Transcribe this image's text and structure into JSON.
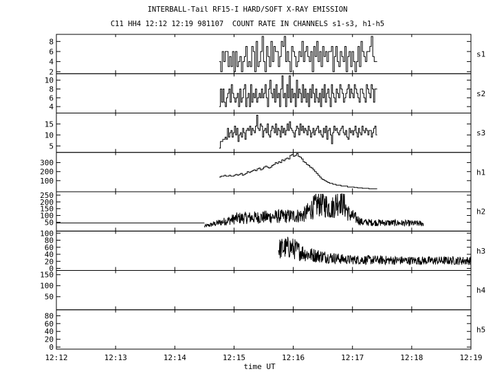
{
  "chart_data": {
    "type": "line",
    "title": "INTERBALL-Tail RF15-I HARD/SOFT X-RAY EMISSION",
    "subtitle": "C11 HH4 12:12 12:19 981107  COUNT RATE IN CHANNELS s1-s3, h1-h5",
    "xlabel": "time UT",
    "x_range": [
      "12:12",
      "12:19"
    ],
    "x_ticks": [
      "12:12",
      "12:13",
      "12:14",
      "12:15",
      "12:16",
      "12:17",
      "12:18",
      "12:19"
    ],
    "grid": false,
    "panels": [
      {
        "name": "s1",
        "style": "step",
        "ylim": [
          2,
          9
        ],
        "yticks": [
          2,
          4,
          6,
          8
        ],
        "x_start": "12:14:45",
        "x_end": "12:17:25",
        "values": [
          4,
          2,
          6,
          4,
          6,
          6,
          3,
          5,
          3,
          6,
          2,
          6,
          3,
          4,
          5,
          2,
          4,
          5,
          7,
          3,
          4,
          3,
          7,
          6,
          2,
          8,
          3,
          4,
          6,
          9,
          4,
          2,
          7,
          5,
          3,
          8,
          4,
          7,
          6,
          6,
          3,
          5,
          8,
          7,
          9,
          4,
          6,
          4,
          2,
          7,
          6,
          5,
          3,
          4,
          6,
          5,
          8,
          4,
          6,
          7,
          5,
          4,
          6,
          2,
          7,
          5,
          8,
          4,
          6,
          3,
          7,
          5,
          6,
          4,
          6,
          6,
          7,
          2,
          5,
          7,
          4,
          3,
          6,
          5,
          4,
          7,
          2,
          5,
          6,
          3,
          6,
          4,
          2,
          4,
          7,
          3,
          8,
          6,
          5,
          4,
          6,
          6,
          7,
          9,
          5,
          4,
          4
        ]
      },
      {
        "name": "s2",
        "style": "step",
        "ylim": [
          3,
          11
        ],
        "yticks": [
          4,
          6,
          8,
          10
        ],
        "x_start": "12:14:45",
        "x_end": "12:17:25",
        "values": [
          4,
          8,
          5,
          8,
          5,
          4,
          6,
          7,
          8,
          5,
          9,
          7,
          6,
          5,
          6,
          7,
          4,
          8,
          5,
          6,
          8,
          9,
          4,
          6,
          7,
          4,
          9,
          5,
          7,
          6,
          8,
          5,
          6,
          7,
          6,
          8,
          6,
          7,
          9,
          6,
          4,
          8,
          10,
          7,
          6,
          8,
          5,
          9,
          6,
          7,
          4,
          8,
          11,
          6,
          7,
          4,
          9,
          6,
          11,
          5,
          8,
          6,
          7,
          4,
          10,
          6,
          8,
          7,
          5,
          9,
          6,
          8,
          5,
          7,
          4,
          8,
          6,
          9,
          7,
          5,
          8,
          6,
          5,
          7,
          4,
          8,
          6,
          9,
          5,
          7,
          8,
          6,
          4,
          9,
          7,
          6,
          5,
          8,
          7,
          6,
          9,
          8,
          7,
          5,
          6,
          7,
          8,
          9,
          6,
          8,
          7,
          6,
          9,
          8,
          7,
          6,
          5,
          8,
          8,
          7,
          6,
          5,
          9,
          8,
          7,
          6,
          9,
          8,
          5,
          8,
          8
        ]
      },
      {
        "name": "s3",
        "style": "step",
        "ylim": [
          3,
          19
        ],
        "yticks": [
          5,
          10,
          15
        ],
        "x_start": "12:14:45",
        "x_end": "12:17:25",
        "values": [
          4,
          7,
          7,
          8,
          8,
          9,
          8,
          13,
          9,
          11,
          12,
          9,
          11,
          14,
          10,
          13,
          7,
          10,
          11,
          9,
          13,
          11,
          8,
          12,
          13,
          12,
          14,
          10,
          13,
          12,
          11,
          14,
          19,
          13,
          12,
          15,
          14,
          9,
          12,
          13,
          11,
          15,
          10,
          9,
          12,
          14,
          13,
          11,
          15,
          10,
          13,
          12,
          9,
          14,
          11,
          13,
          10,
          12,
          15,
          12,
          16,
          13,
          12,
          11,
          9,
          12,
          14,
          13,
          10,
          15,
          12,
          14,
          11,
          13,
          12,
          10,
          14,
          12,
          9,
          11,
          13,
          10,
          12,
          13,
          14,
          11,
          12,
          10,
          9,
          13,
          11,
          14,
          8,
          12,
          13,
          10,
          6,
          11,
          14,
          12,
          13,
          11,
          10,
          12,
          13,
          14,
          11,
          10,
          12,
          9,
          8,
          13,
          11,
          12,
          10,
          12,
          14,
          11,
          9,
          13,
          11,
          10,
          14,
          12,
          11,
          13,
          12,
          10,
          12,
          12,
          9,
          11,
          13,
          14,
          10
        ]
      },
      {
        "name": "h1",
        "style": "step",
        "ylim": [
          0,
          390
        ],
        "yticks": [
          100,
          200,
          300
        ],
        "x_start": "12:14:45",
        "x_end": "12:17:25",
        "values": [
          140,
          150,
          150,
          160,
          150,
          150,
          160,
          150,
          150,
          160,
          170,
          160,
          170,
          180,
          160,
          170,
          180,
          200,
          190,
          200,
          210,
          220,
          210,
          230,
          240,
          220,
          230,
          250,
          260,
          250,
          240,
          250,
          270,
          280,
          300,
          290,
          310,
          300,
          330,
          320,
          340,
          350,
          340,
          380,
          390,
          370,
          380,
          400,
          370,
          360,
          340,
          310,
          300,
          280,
          270,
          250,
          240,
          220,
          200,
          180,
          160,
          140,
          120,
          110,
          100,
          90,
          80,
          70,
          70,
          60,
          60,
          50,
          50,
          50,
          40,
          40,
          40,
          40,
          30,
          30,
          30,
          30,
          25,
          25,
          20,
          20,
          20,
          15,
          15,
          15,
          15,
          10,
          10,
          10,
          10,
          10
        ]
      },
      {
        "name": "h2",
        "style": "noisy",
        "ylim": [
          0,
          260
        ],
        "yticks": [
          50,
          100,
          150,
          200,
          250
        ],
        "baseline": {
          "x_start": "12:12",
          "x_end": "12:14:30",
          "value": 45
        },
        "x_start": "12:14:30",
        "x_end": "12:18:12",
        "profile": [
          [
            0,
            20
          ],
          [
            0.15,
            80
          ],
          [
            0.3,
            90
          ],
          [
            0.45,
            100
          ],
          [
            0.53,
            200
          ],
          [
            0.58,
            150
          ],
          [
            0.62,
            230
          ],
          [
            0.66,
            110
          ],
          [
            0.72,
            50
          ],
          [
            1.0,
            40
          ]
        ]
      },
      {
        "name": "h3",
        "style": "noisy",
        "ylim": [
          0,
          100
        ],
        "yticks": [
          0,
          20,
          40,
          60,
          80,
          100
        ],
        "x_start": "12:15:45",
        "x_end": "12:19",
        "profile": [
          [
            0,
            55
          ],
          [
            0.06,
            60
          ],
          [
            0.15,
            40
          ],
          [
            0.35,
            25
          ],
          [
            0.7,
            22
          ],
          [
            1.0,
            22
          ]
        ]
      },
      {
        "name": "h4",
        "style": "empty",
        "ylim": [
          0,
          160
        ],
        "yticks": [
          50,
          100,
          150
        ]
      },
      {
        "name": "h5",
        "style": "empty",
        "ylim": [
          0,
          90
        ],
        "yticks": [
          0,
          20,
          40,
          60,
          80
        ]
      }
    ]
  }
}
